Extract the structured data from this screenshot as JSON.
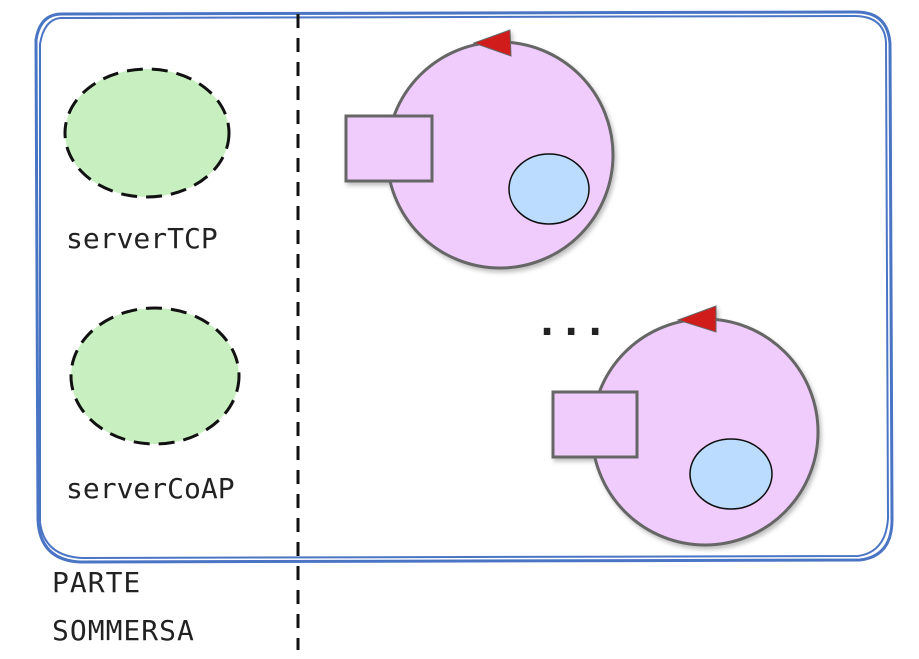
{
  "labels": {
    "server_tcp": "serverTCP",
    "server_coap": "serverCoAP",
    "ellipsis": "...",
    "zone_line1": "PARTE",
    "zone_line2": "SOMMERSA"
  },
  "colors": {
    "frame": "#4a74c4",
    "server_fill": "#c8efc0",
    "actor_fill": "#f0ccfc",
    "port_fill": "#f0ccfc",
    "inner_fill": "#bcdcff",
    "arrow": "#d11a1a",
    "dashed": "#111111"
  }
}
